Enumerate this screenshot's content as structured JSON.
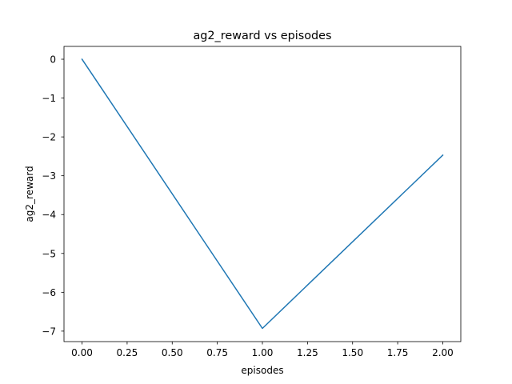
{
  "chart_data": {
    "type": "line",
    "title": "ag2_reward vs episodes",
    "xlabel": "episodes",
    "ylabel": "ag2_reward",
    "xlim": [
      -0.1,
      2.1
    ],
    "ylim": [
      -7.27,
      0.33
    ],
    "xticks": [
      0.0,
      0.25,
      0.5,
      0.75,
      1.0,
      1.25,
      1.5,
      1.75,
      2.0
    ],
    "xtick_labels": [
      "0.00",
      "0.25",
      "0.50",
      "0.75",
      "1.00",
      "1.25",
      "1.50",
      "1.75",
      "2.00"
    ],
    "yticks": [
      0,
      -1,
      -2,
      -3,
      -4,
      -5,
      -6,
      -7
    ],
    "ytick_labels": [
      "0",
      "−1",
      "−2",
      "−3",
      "−4",
      "−5",
      "−6",
      "−7"
    ],
    "grid": false,
    "series": [
      {
        "x": [
          0,
          1,
          2
        ],
        "values": [
          0,
          -6.93,
          -2.47
        ],
        "color": "#1f77b4"
      }
    ]
  }
}
